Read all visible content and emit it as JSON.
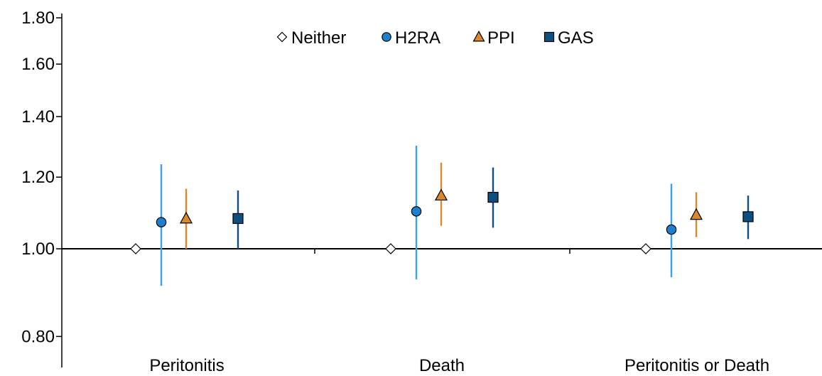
{
  "chart_data": {
    "type": "scatter",
    "scale": "log",
    "categories": [
      "Peritonitis",
      "Death",
      "Peritonitis or Death"
    ],
    "y_ticks": [
      "0.80",
      "1.00",
      "1.20",
      "1.40",
      "1.60",
      "1.80"
    ],
    "ylim": [
      0.76,
      1.8
    ],
    "reference_line": 1.0,
    "legend_position": "top-center",
    "series": [
      {
        "name": "Neither",
        "marker": "diamond",
        "color": "#ffffff",
        "bar_color": "#000000",
        "values": [
          1.0,
          1.0,
          1.0
        ],
        "lower": [
          1.0,
          1.0,
          1.0
        ],
        "upper": [
          1.0,
          1.0,
          1.0
        ]
      },
      {
        "name": "H2RA",
        "marker": "circle",
        "color": "#1f7fcf",
        "bar_color": "#3aa3e8",
        "values": [
          1.07,
          1.1,
          1.05
        ],
        "lower": [
          0.91,
          0.925,
          0.93
        ],
        "upper": [
          1.24,
          1.3,
          1.18
        ]
      },
      {
        "name": "PPI",
        "marker": "triangle",
        "color": "#d9892b",
        "bar_color": "#d9892b",
        "values": [
          1.08,
          1.145,
          1.09
        ],
        "lower": [
          1.0,
          1.06,
          1.03
        ],
        "upper": [
          1.165,
          1.245,
          1.155
        ]
      },
      {
        "name": "GAS",
        "marker": "square",
        "color": "#0d4f80",
        "bar_color": "#0d4f80",
        "values": [
          1.08,
          1.14,
          1.085
        ],
        "lower": [
          1.0,
          1.055,
          1.025
        ],
        "upper": [
          1.16,
          1.23,
          1.145
        ]
      }
    ]
  }
}
